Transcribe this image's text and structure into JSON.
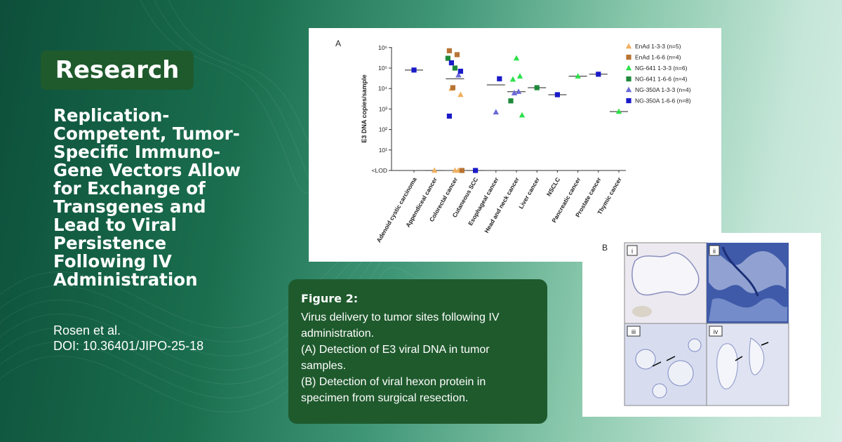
{
  "badge": "Research",
  "headline": [
    "Replication-",
    "Competent, Tumor-",
    "Specific Immuno-",
    "Gene Vectors Allow",
    "for Exchange of",
    "Transgenes and",
    "Lead to Viral",
    "Persistence",
    "Following IV",
    "Administration"
  ],
  "authors": {
    "names": "Rosen et al.",
    "doi": "DOI: 10.36401/JIPO-25-18"
  },
  "caption": {
    "title": "Figure 2:",
    "lines": [
      "Virus delivery to tumor sites following IV",
      "administration.",
      "(A) Detection of E3 viral DNA in tumor",
      "samples.",
      "(B) Detection of viral hexon protein in",
      "specimen from surgical resection."
    ]
  },
  "panel_b": {
    "label": "B",
    "subpanels": [
      "i",
      "ii",
      "iii",
      "iv"
    ]
  },
  "chart_data": {
    "type": "scatter",
    "panel_label": "A",
    "ylabel": "E3 DNA copies/sample",
    "y_scale": "log",
    "y_ticks": [
      "<LOD",
      "10¹",
      "10²",
      "10³",
      "10⁴",
      "10⁵",
      "10⁶"
    ],
    "categories": [
      "Adenoid cystic carcinoma",
      "Appendiceal cancer",
      "Colorectal cancer",
      "Cutaneous SCC",
      "Esophageal cancer",
      "Head and neck cancer",
      "Liver cancer",
      "NSCLC",
      "Pancreatic cancer",
      "Prostate cancer",
      "Thymic cancer"
    ],
    "series": [
      {
        "name": "EnAd 1-3-3 (n=5)",
        "marker": "triangle",
        "color": "#f0b060",
        "points": [
          {
            "cat": 1,
            "y": "<LOD"
          },
          {
            "cat": 2,
            "y": "<LOD"
          },
          {
            "cat": 2,
            "y": "<LOD"
          },
          {
            "cat": 2,
            "y": 10000
          },
          {
            "cat": 2,
            "y": 5000
          }
        ]
      },
      {
        "name": "EnAd 1-6-6 (n=4)",
        "marker": "square",
        "color": "#b87333",
        "points": [
          {
            "cat": 2,
            "y": 700000
          },
          {
            "cat": 2,
            "y": 450000
          },
          {
            "cat": 2,
            "y": 11000
          },
          {
            "cat": 2,
            "y": "<LOD"
          }
        ]
      },
      {
        "name": "NG-641 1-3-3 (n=6)",
        "marker": "triangle",
        "color": "#2ee04a",
        "points": [
          {
            "cat": 5,
            "y": 300000
          },
          {
            "cat": 5,
            "y": 40000
          },
          {
            "cat": 5,
            "y": 28000
          },
          {
            "cat": 5,
            "y": 500
          },
          {
            "cat": 8,
            "y": 40000
          },
          {
            "cat": 10,
            "y": 750
          }
        ]
      },
      {
        "name": "NG-641 1-6-6 (n=4)",
        "marker": "square",
        "color": "#1f8a3a",
        "points": [
          {
            "cat": 2,
            "y": 300000
          },
          {
            "cat": 2,
            "y": 100000
          },
          {
            "cat": 5,
            "y": 2500
          },
          {
            "cat": 6,
            "y": 11000
          }
        ]
      },
      {
        "name": "NG-350A 1-3-3 (n=4)",
        "marker": "triangle",
        "color": "#6a6ad8",
        "points": [
          {
            "cat": 2,
            "y": 45000
          },
          {
            "cat": 4,
            "y": 700
          },
          {
            "cat": 5,
            "y": 7000
          },
          {
            "cat": 5,
            "y": 6000
          }
        ]
      },
      {
        "name": "NG-350A 1-6-6 (n=8)",
        "marker": "square",
        "color": "#1a1ac8",
        "points": [
          {
            "cat": 0,
            "y": 80000
          },
          {
            "cat": 2,
            "y": 180000
          },
          {
            "cat": 2,
            "y": 70000
          },
          {
            "cat": 2,
            "y": 450
          },
          {
            "cat": 3,
            "y": "<LOD"
          },
          {
            "cat": 4,
            "y": 30000
          },
          {
            "cat": 7,
            "y": 5000
          },
          {
            "cat": 9,
            "y": 50000
          }
        ]
      }
    ],
    "medians": [
      80000,
      "<LOD",
      30000,
      "<LOD",
      15000,
      7000,
      11000,
      5000,
      40000,
      50000,
      750
    ],
    "legend_position": "top-right"
  }
}
